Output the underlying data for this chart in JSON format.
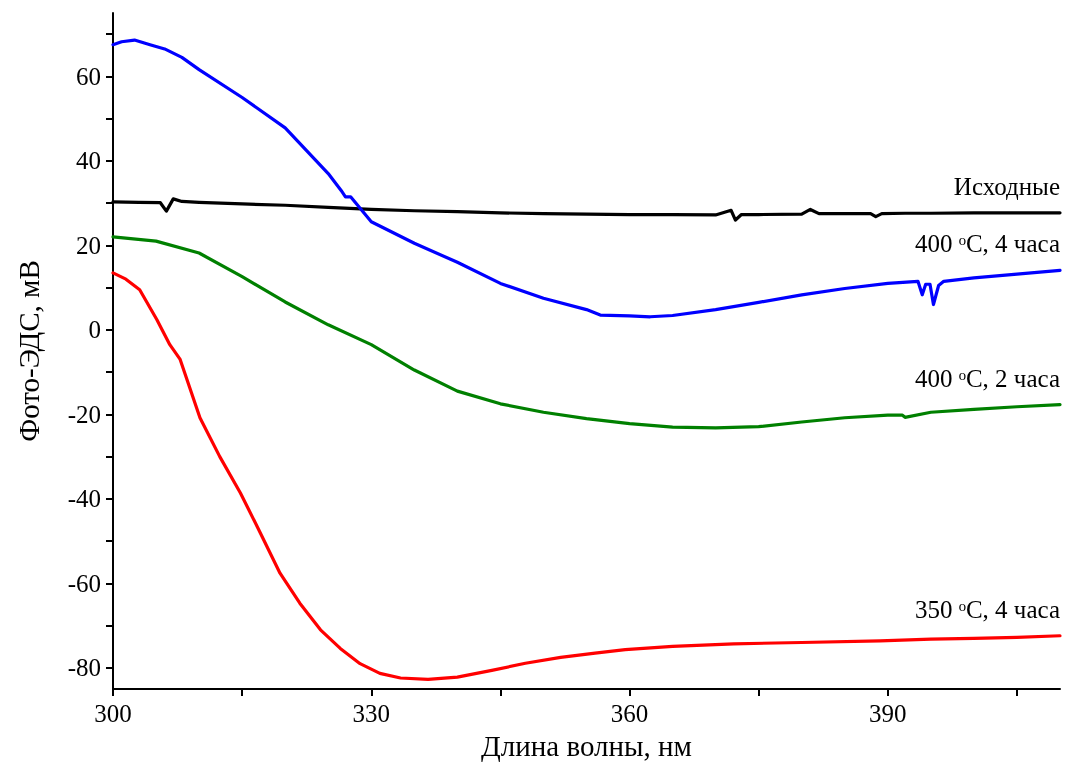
{
  "chart_data": {
    "type": "line",
    "xlabel": "Длина волны, нм",
    "ylabel": "Фото-ЭДС, мВ",
    "xlim": [
      300,
      410
    ],
    "xticks": [
      300,
      {
        "value": 315,
        "label": null
      },
      330,
      {
        "value": 345,
        "label": null
      },
      360,
      {
        "value": 375,
        "label": null
      },
      390,
      {
        "value": 405,
        "label": null
      }
    ],
    "ylim": [
      -85,
      75
    ],
    "yticks": [
      -80,
      {
        "value": -70,
        "label": null
      },
      -60,
      {
        "value": -50,
        "label": null
      },
      -40,
      {
        "value": -30,
        "label": null
      },
      -20,
      {
        "value": -10,
        "label": null
      },
      0,
      {
        "value": 10,
        "label": null
      },
      20,
      {
        "value": 30,
        "label": null
      },
      40,
      {
        "value": 50,
        "label": null
      },
      60,
      {
        "value": 70,
        "label": null
      }
    ],
    "grid": false,
    "legend": false,
    "marker": "none",
    "line_style": "solid",
    "series": [
      {
        "name": "Исходные",
        "color": "#000000",
        "x": [
          300,
          303,
          305.5,
          306.2,
          307,
          308,
          310,
          315,
          320,
          325,
          330,
          335,
          340,
          345,
          350,
          355,
          360,
          365,
          370,
          371.8,
          372.3,
          373,
          375,
          380,
          381,
          382,
          385,
          388,
          388.6,
          389.3,
          392,
          395,
          400,
          405,
          410
        ],
        "values": [
          30.3,
          30.2,
          30.1,
          28.1,
          31,
          30.4,
          30.2,
          29.8,
          29.5,
          29,
          28.5,
          28.2,
          28,
          27.7,
          27.5,
          27.4,
          27.3,
          27.3,
          27.2,
          28.3,
          26,
          27.3,
          27.3,
          27.4,
          28.5,
          27.5,
          27.5,
          27.5,
          26.8,
          27.5,
          27.6,
          27.6,
          27.7,
          27.7,
          27.7
        ]
      },
      {
        "name": "400 ᵒC, 4 часа",
        "color": "#0000ff",
        "x": [
          300,
          301,
          302.5,
          304.3,
          306,
          308,
          310,
          315,
          320,
          325,
          326.5,
          327,
          327.6,
          330,
          335,
          340,
          345,
          350,
          355,
          356.6,
          360,
          362.4,
          365,
          370,
          375,
          380,
          385,
          390,
          393.5,
          394,
          394.4,
          394.9,
          395.3,
          395.9,
          396.5,
          400,
          405,
          410
        ],
        "values": [
          67.5,
          68.2,
          68.6,
          67.5,
          66.5,
          64.5,
          61.6,
          55,
          47.8,
          37,
          33,
          31.5,
          31.5,
          25.6,
          20.5,
          16,
          11,
          7.5,
          4.8,
          3.5,
          3.3,
          3.1,
          3.4,
          4.8,
          6.5,
          8.3,
          9.8,
          11,
          11.5,
          8.3,
          10.8,
          10.8,
          6,
          10.5,
          11.5,
          12.3,
          13.2,
          14.1
        ]
      },
      {
        "name": "400 ᵒC, 2 часа",
        "color": "#008000",
        "x": [
          300,
          305,
          310,
          315,
          320,
          325,
          330,
          335,
          340,
          345,
          350,
          355,
          360,
          365,
          370,
          375,
          380,
          385,
          390,
          391.7,
          392,
          395,
          400,
          405,
          410
        ],
        "values": [
          22,
          21,
          18.2,
          12.6,
          6.6,
          1.2,
          -3.5,
          -9.5,
          -14.5,
          -17.5,
          -19.5,
          -21,
          -22.2,
          -23,
          -23.2,
          -22.9,
          -21.8,
          -20.8,
          -20.2,
          -20.2,
          -20.7,
          -19.5,
          -18.8,
          -18.2,
          -17.7
        ]
      },
      {
        "name": "350 ᵒC, 4 часа",
        "color": "#ff0000",
        "x": [
          300,
          301.5,
          303.1,
          305.1,
          306.6,
          307.8,
          310.1,
          312.4,
          314.8,
          317.1,
          319.4,
          321.7,
          324.1,
          326.4,
          328.7,
          331,
          333.4,
          336.6,
          340,
          344,
          347.9,
          352,
          356,
          359.5,
          365,
          372.1,
          380,
          389.1,
          395,
          400,
          405,
          410
        ],
        "values": [
          13.5,
          12,
          9.5,
          2.4,
          -3.5,
          -7,
          -20.8,
          -30,
          -38.6,
          -48,
          -57.6,
          -64.7,
          -71,
          -75.4,
          -79,
          -81.3,
          -82.4,
          -82.7,
          -82.2,
          -80.6,
          -78.9,
          -77.5,
          -76.5,
          -75.7,
          -74.9,
          -74.3,
          -74,
          -73.6,
          -73.2,
          -73,
          -72.8,
          -72.4
        ]
      }
    ]
  }
}
